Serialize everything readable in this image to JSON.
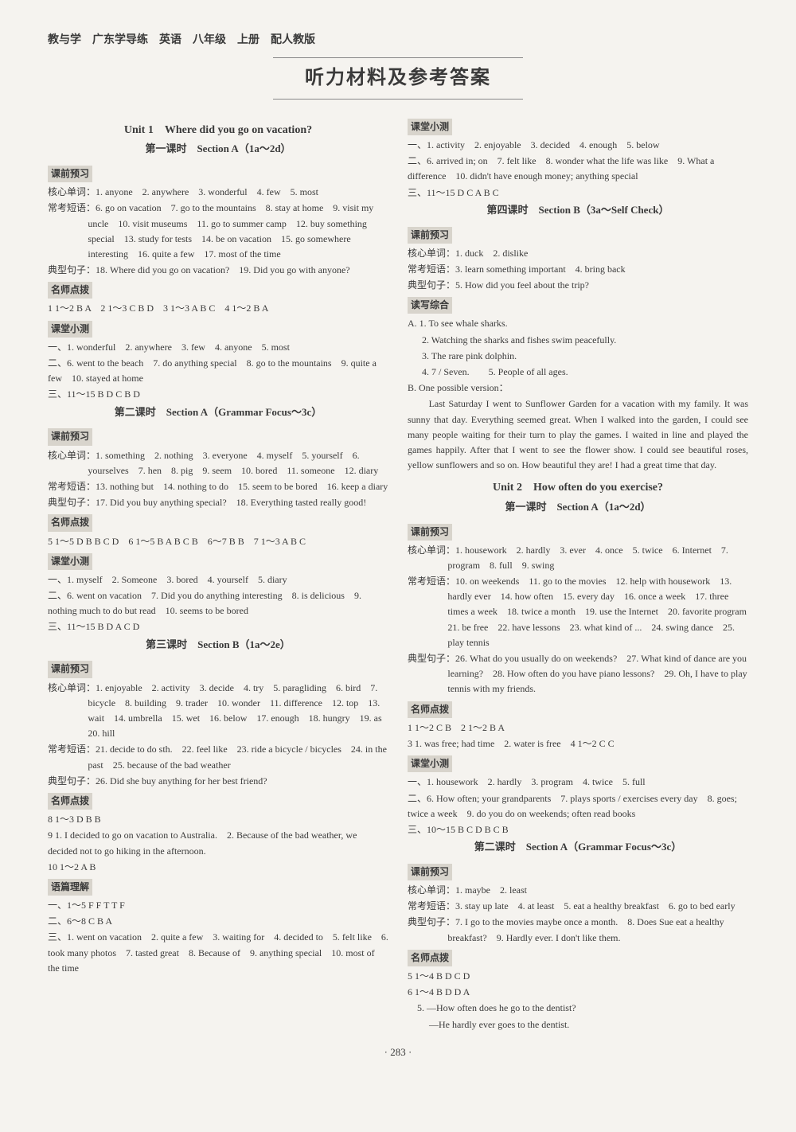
{
  "header": "教与学　广东学导练　英语　八年级　上册　配人教版",
  "banner": "听力材料及参考答案",
  "page_number": "· 283 ·",
  "unit1": {
    "title": "Unit 1　Where did you go on vacation?",
    "p1": {
      "title": "第一课时　Section A（1a～2d）",
      "sec_preview": "课前预习",
      "hexin_label": "核心单词：",
      "hexin": "1. anyone　2. anywhere　3. wonderful　4. few　5. most",
      "changkao_label": "常考短语：",
      "changkao": "6. go on vacation　7. go to the mountains　8. stay at home　9. visit my uncle　10. visit museums　11. go to summer camp　12. buy something special　13. study for tests　14. be on vacation　15. go somewhere interesting　16. quite a few　17. most of the time",
      "dianxing_label": "典型句子：",
      "dianxing": "18. Where did you go on vacation?　19. Did you go with anyone?",
      "mingshi": "名师点拨",
      "mingshi_ans": "1 1～2 B A　2 1～3 C B D　3 1～3 A B C　4 1～2 B A",
      "ketang": "课堂小测",
      "kt_yi": "一、1. wonderful　2. anywhere　3. few　4. anyone　5. most",
      "kt_er": "二、6. went to the beach　7. do anything special　8. go to the mountains　9. quite a few　10. stayed at home",
      "kt_san": "三、11～15 B D C B D"
    },
    "p2": {
      "title": "第二课时　Section A（Grammar Focus～3c）",
      "sec_preview": "课前预习",
      "hexin_label": "核心单词：",
      "hexin": "1. something　2. nothing　3. everyone　4. myself　5. yourself　6. yourselves　7. hen　8. pig　9. seem　10. bored　11. someone　12. diary",
      "changkao_label": "常考短语：",
      "changkao": "13. nothing but　14. nothing to do　15. seem to be bored　16. keep a diary",
      "dianxing_label": "典型句子：",
      "dianxing": "17. Did you buy anything special?　18. Everything tasted really good!",
      "mingshi": "名师点拨",
      "mingshi_ans": "5 1～5 D B B C D　6 1～5 B A B C B　6～7 B B　7 1～3 A B C",
      "ketang": "课堂小测",
      "kt_yi": "一、1. myself　2. Someone　3. bored　4. yourself　5. diary",
      "kt_er": "二、6. went on vacation　7. Did you do anything interesting　8. is delicious　9. nothing much to do but read　10. seems to be bored",
      "kt_san": "三、11～15 B D A C D"
    },
    "p3": {
      "title": "第三课时　Section B（1a～2e）",
      "sec_preview": "课前预习",
      "hexin_label": "核心单词：",
      "hexin": "1. enjoyable　2. activity　3. decide　4. try　5. paragliding　6. bird　7. bicycle　8. building　9. trader　10. wonder　11. difference　12. top　13. wait　14. umbrella　15. wet　16. below　17. enough　18. hungry　19. as　20. hill",
      "changkao_label": "常考短语：",
      "changkao": "21. decide to do sth.　22. feel like　23. ride a bicycle / bicycles　24. in the past　25. because of the bad weather",
      "dianxing_label": "典型句子：",
      "dianxing": "26. Did she buy anything for her best friend?",
      "mingshi": "名师点拨",
      "mingshi_ans": "8 1～3 D B B",
      "nine": "9 1. I decided to go on vacation to Australia.　2. Because of the bad weather, we decided not to go hiking in the afternoon.",
      "ten": "10 1～2 A B",
      "yupian": "语篇理解",
      "yp_yi": "一、1～5 F F T T F",
      "yp_er": "二、6～8 C B A",
      "yp_san": "三、1. went on vacation　2. quite a few　3. waiting for　4. decided to　5. felt like　6. took many photos　7. tasted great　8. Because of　9. anything special　10. most of the time",
      "ketang": "课堂小测",
      "kt_yi": "一、1. activity　2. enjoyable　3. decided　4. enough　5. below",
      "kt_er": "二、6. arrived in; on　7. felt like　8. wonder what the life was like　9. What a difference　10. didn't have enough money; anything special",
      "kt_san": "三、11～15 D C A B C"
    },
    "p4": {
      "title": "第四课时　Section B（3a～Self Check）",
      "sec_preview": "课前预习",
      "hexin_label": "核心单词：",
      "hexin": "1. duck　2. dislike",
      "changkao_label": "常考短语：",
      "changkao": "3. learn something important　4. bring back",
      "dianxing_label": "典型句子：",
      "dianxing": "5. How did you feel about the trip?",
      "duxie": "读写综合",
      "a1": "A. 1. To see whale sharks.",
      "a2": "2. Watching the sharks and fishes swim peacefully.",
      "a3": "3. The rare pink dolphin.",
      "a4": "4. 7 / Seven.　　5. People of all ages.",
      "b_head": "B. One possible version：",
      "b_body": "　　Last Saturday I went to Sunflower Garden for a vacation with my family. It was sunny that day. Everything seemed great. When I walked into the garden, I could see many people waiting for their turn to play the games. I waited in line and played the games happily. After that I went to see the flower show. I could see beautiful roses, yellow sunflowers and so on. How beautiful they are! I had a great time that day."
    }
  },
  "unit2": {
    "title": "Unit 2　How often do you exercise?",
    "p1": {
      "title": "第一课时　Section A（1a～2d）",
      "sec_preview": "课前预习",
      "hexin_label": "核心单词：",
      "hexin": "1. housework　2. hardly　3. ever　4. once　5. twice　6. Internet　7. program　8. full　9. swing",
      "changkao_label": "常考短语：",
      "changkao": "10. on weekends　11. go to the movies　12. help with housework　13. hardly ever　14. how often　15. every day　16. once a week　17. three times a week　18. twice a month　19. use the Internet　20. favorite program　21. be free　22. have lessons　23. what kind of ...　24. swing dance　25. play tennis",
      "dianxing_label": "典型句子：",
      "dianxing": "26. What do you usually do on weekends?　27. What kind of dance are you learning?　28. How often do you have piano lessons?　29. Oh, I have to play tennis with my friends.",
      "mingshi": "名师点拨",
      "mingshi_ans1": "1 1～2 C B　2 1～2 B A",
      "mingshi_ans2": "3 1. was free; had time　2. water is free　4 1～2 C C",
      "ketang": "课堂小测",
      "kt_yi": "一、1. housework　2. hardly　3. program　4. twice　5. full",
      "kt_er": "二、6. How often; your grandparents　7. plays sports / exercises every day　8. goes; twice a week　9. do you do on weekends; often read books",
      "kt_san": "三、10～15 B C D B C B"
    },
    "p2": {
      "title": "第二课时　Section A（Grammar Focus～3c）",
      "sec_preview": "课前预习",
      "hexin_label": "核心单词：",
      "hexin": "1. maybe　2. least",
      "changkao_label": "常考短语：",
      "changkao": "3. stay up late　4. at least　5. eat a healthy breakfast　6. go to bed early",
      "dianxing_label": "典型句子：",
      "dianxing": "7. I go to the movies maybe once a month.　8. Does Sue eat a healthy breakfast?　9. Hardly ever. I don't like them.",
      "mingshi": "名师点拨",
      "mingshi_ans1": "5 1～4 B D C D",
      "mingshi_ans2": "6 1～4 B D D A",
      "mingshi_ans3": "　5. —How often does he go to the dentist?",
      "mingshi_ans4": "　　 —He hardly ever goes to the dentist."
    }
  }
}
